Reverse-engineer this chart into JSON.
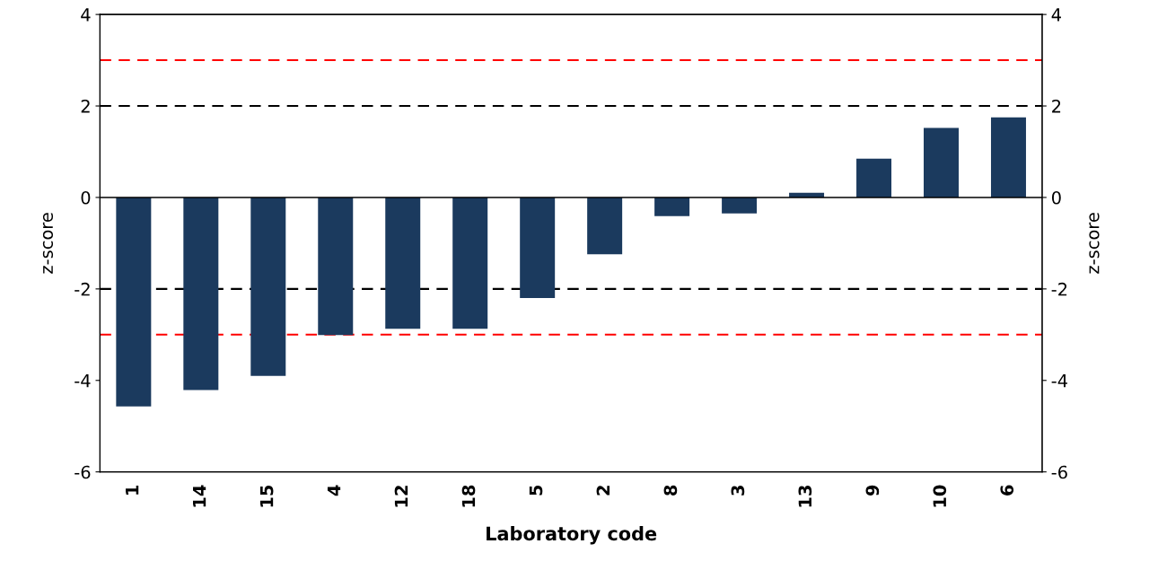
{
  "chart_data": {
    "type": "bar",
    "xlabel": "Laboratory code",
    "ylabel": "z-score",
    "y2label": "z-score",
    "categories": [
      "1",
      "14",
      "15",
      "4",
      "12",
      "18",
      "5",
      "2",
      "8",
      "3",
      "13",
      "9",
      "10",
      "6"
    ],
    "values": [
      -4.57,
      -4.21,
      -3.9,
      -3.01,
      -2.87,
      -2.87,
      -2.2,
      -1.24,
      -0.41,
      -0.35,
      0.1,
      0.85,
      1.52,
      1.75
    ],
    "color": "#1b3a5e",
    "ylim": [
      -6,
      4
    ],
    "yticks": [
      -6,
      -4,
      -2,
      0,
      2,
      4
    ],
    "y2lim": [
      -6,
      4
    ],
    "y2ticks": [
      -6,
      -4,
      -2,
      0,
      2,
      4
    ],
    "ref_lines": [
      {
        "axis": "y",
        "value": 3,
        "color": "#ff0000",
        "line_style": "dashed"
      },
      {
        "axis": "y",
        "value": 2,
        "color": "#000000",
        "line_style": "dashed"
      },
      {
        "axis": "y",
        "value": -2,
        "color": "#000000",
        "line_style": "dashed"
      },
      {
        "axis": "y",
        "value": -3,
        "color": "#ff0000",
        "line_style": "dashed"
      }
    ],
    "grid": false,
    "legend": false
  }
}
